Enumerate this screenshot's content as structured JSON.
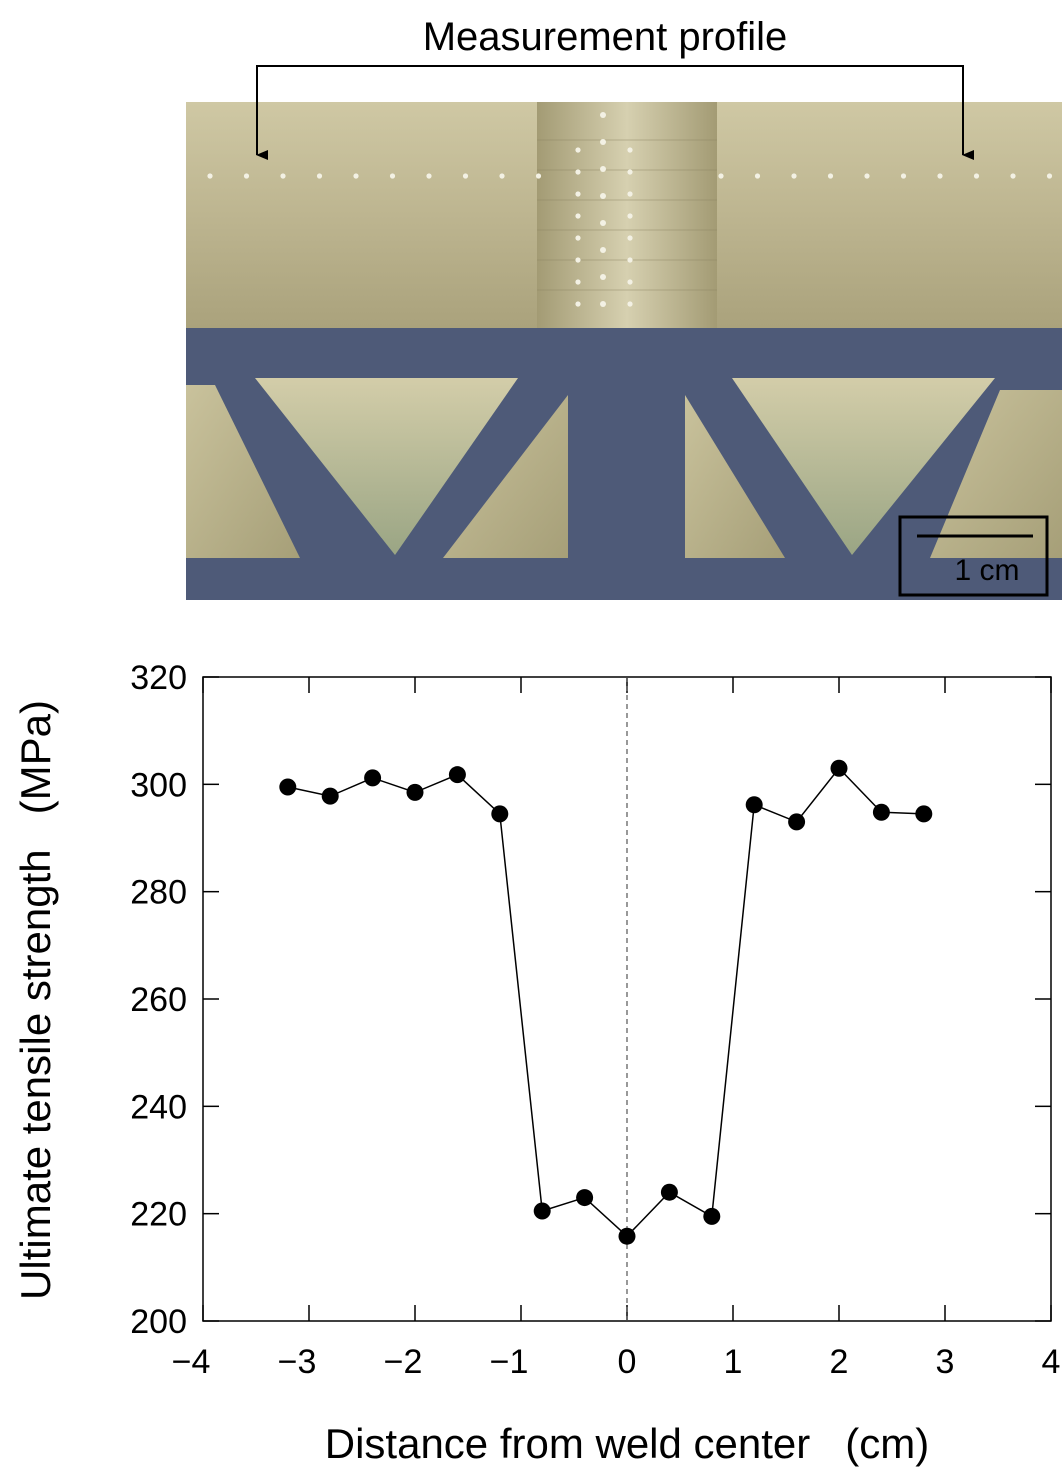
{
  "figure": {
    "annotation": "Measurement profile",
    "scale_bar_label": "1 cm"
  },
  "chart_data": {
    "type": "line",
    "xlabel": "Distance from weld center   (cm)",
    "ylabel": "Ultimate tensile strength   (MPa)",
    "xlim": [
      -4,
      4
    ],
    "ylim": [
      200,
      320
    ],
    "xticks": [
      -4,
      -3,
      -2,
      -1,
      0,
      1,
      2,
      3,
      4
    ],
    "xtick_labels": [
      "−4",
      "−3",
      "−2",
      "−1",
      "0",
      "1",
      "2",
      "3",
      "4"
    ],
    "yticks": [
      200,
      220,
      240,
      260,
      280,
      300,
      320
    ],
    "ytick_labels": [
      "200",
      "220",
      "240",
      "260",
      "280",
      "300",
      "320"
    ],
    "grid": false,
    "reference_line_x": 0,
    "series": [
      {
        "marker": "filled-circle",
        "color": "#000000",
        "x": [
          -3.2,
          -2.8,
          -2.4,
          -2.0,
          -1.6,
          -1.2,
          -0.8,
          -0.4,
          0.0,
          0.4,
          0.8,
          1.2,
          1.6,
          2.0,
          2.4,
          2.8
        ],
        "y": [
          299.5,
          297.8,
          301.2,
          298.5,
          301.8,
          294.5,
          220.5,
          223.0,
          215.8,
          224.0,
          219.5,
          296.2,
          293.0,
          303.0,
          294.8,
          294.5
        ]
      }
    ]
  }
}
